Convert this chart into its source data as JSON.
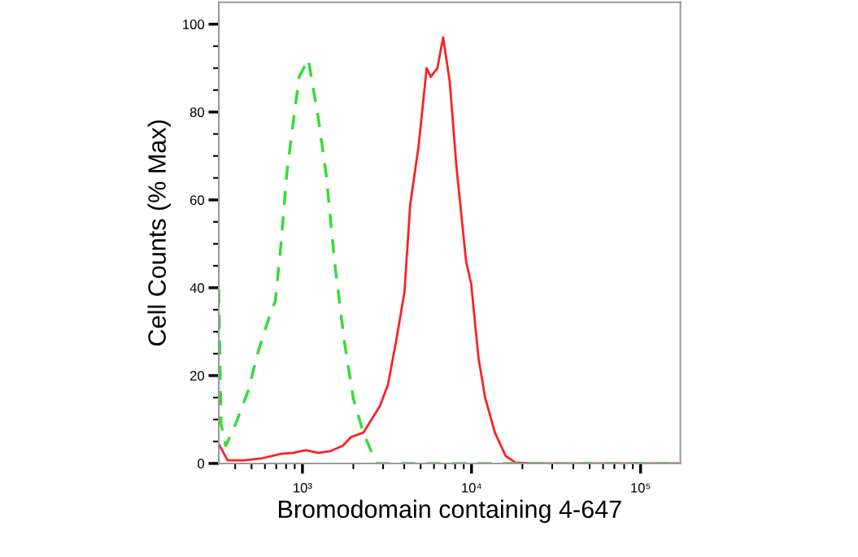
{
  "chart_data": {
    "type": "line",
    "xlabel": "Bromodomain containing 4-647",
    "ylabel": "Cell Counts (% Max)",
    "log": "x",
    "grid": false,
    "legend": false,
    "xlim": [
      320,
      172000
    ],
    "ylim": [
      0,
      105
    ],
    "xticks": [
      {
        "value": 400,
        "label": null
      },
      {
        "value": 500,
        "label": null
      },
      {
        "value": 600,
        "label": null
      },
      {
        "value": 700,
        "label": null
      },
      {
        "value": 800,
        "label": null
      },
      {
        "value": 900,
        "label": null
      },
      {
        "value": 1000,
        "label": "10³"
      },
      {
        "value": 2000,
        "label": null
      },
      {
        "value": 3000,
        "label": null
      },
      {
        "value": 4000,
        "label": null
      },
      {
        "value": 5000,
        "label": null
      },
      {
        "value": 6000,
        "label": null
      },
      {
        "value": 7000,
        "label": null
      },
      {
        "value": 8000,
        "label": null
      },
      {
        "value": 9000,
        "label": null
      },
      {
        "value": 10000,
        "label": "10⁴"
      },
      {
        "value": 20000,
        "label": null
      },
      {
        "value": 30000,
        "label": null
      },
      {
        "value": 40000,
        "label": null
      },
      {
        "value": 50000,
        "label": null
      },
      {
        "value": 60000,
        "label": null
      },
      {
        "value": 70000,
        "label": null
      },
      {
        "value": 80000,
        "label": null
      },
      {
        "value": 90000,
        "label": null
      },
      {
        "value": 100000,
        "label": "10⁵"
      }
    ],
    "yticks": [
      0,
      {
        "value": 5,
        "label": null
      },
      {
        "value": 10,
        "label": null
      },
      {
        "value": 15,
        "label": null
      },
      20,
      {
        "value": 25,
        "label": null
      },
      {
        "value": 30,
        "label": null
      },
      {
        "value": 35,
        "label": null
      },
      40,
      {
        "value": 45,
        "label": null
      },
      {
        "value": 50,
        "label": null
      },
      {
        "value": 55,
        "label": null
      },
      60,
      {
        "value": 65,
        "label": null
      },
      {
        "value": 70,
        "label": null
      },
      {
        "value": 75,
        "label": null
      },
      80,
      {
        "value": 85,
        "label": null
      },
      {
        "value": 90,
        "label": null
      },
      {
        "value": 95,
        "label": null
      },
      100
    ],
    "series": [
      {
        "color": "#ff2020",
        "line_style": "solid",
        "x": [
          320,
          361,
          451,
          565,
          747,
          884,
          1046,
          1237,
          1464,
          1731,
          1937,
          2291,
          2563,
          2867,
          3207,
          3587,
          4012,
          4340,
          4855,
          5430,
          5742,
          6282,
          6795,
          7430,
          8128,
          8790,
          9290,
          9945,
          11000,
          12030,
          13760,
          15920,
          18210,
          22790,
          172000
        ],
        "values": [
          4.4,
          0.7,
          0.7,
          1.1,
          2.2,
          2.4,
          3,
          2.4,
          2.8,
          4,
          6,
          7,
          10,
          13,
          18,
          28,
          39,
          59,
          72,
          90,
          88,
          90,
          97,
          87,
          68,
          55,
          46,
          41,
          24,
          15,
          7,
          1.7,
          0.2,
          0,
          0
        ]
      },
      {
        "color": "#33dd33",
        "line_style": "dashed",
        "x": [
          320,
          330,
          352,
          403,
          477,
          552,
          632,
          691,
          747,
          808,
          884,
          956,
          1082,
          1237,
          1384,
          1548,
          1771,
          2003,
          2291,
          2563,
          2773,
          172000
        ],
        "values": [
          39.6,
          9,
          4,
          9,
          16.5,
          26,
          33,
          37,
          50,
          66,
          78,
          88,
          92,
          79,
          65.5,
          46,
          27.6,
          14.6,
          7,
          2.6,
          0,
          0
        ]
      }
    ]
  }
}
